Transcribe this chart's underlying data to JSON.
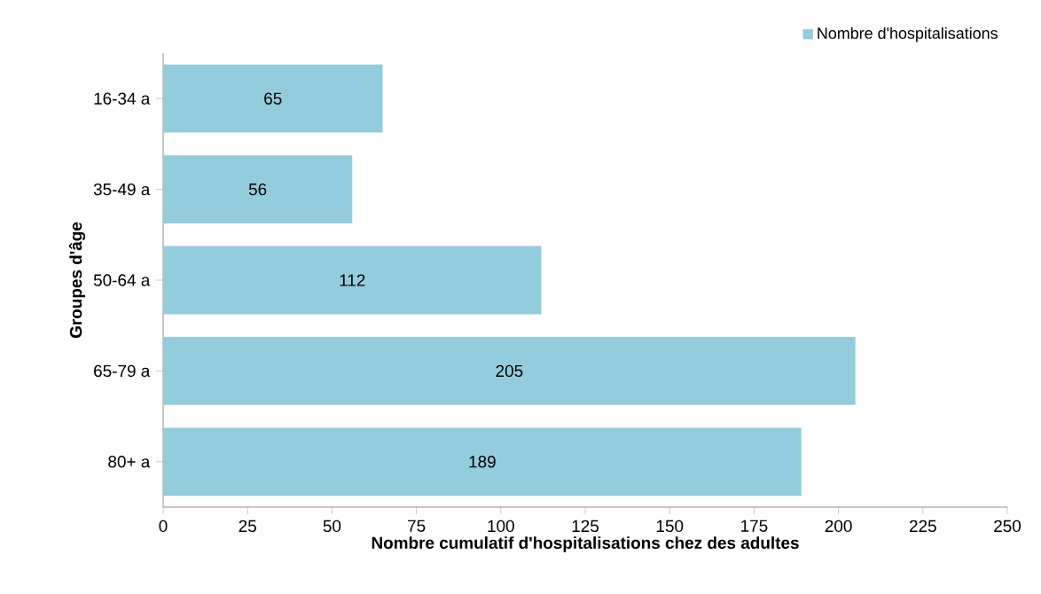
{
  "chart_data": {
    "type": "bar",
    "orientation": "horizontal",
    "xlabel": "Nombre cumulatif d'hospitalisations chez des adultes",
    "ylabel": "Groupes d'âge",
    "categories": [
      "16-34 a",
      "35-49 a",
      "50-64 a",
      "65-79 a",
      "80+ a"
    ],
    "series": [
      {
        "name": "Nombre d'hospitalisations",
        "color": "#93cddd",
        "values": [
          65,
          56,
          112,
          205,
          189
        ]
      }
    ],
    "xlim": [
      0,
      250
    ],
    "xticks": [
      0,
      25,
      50,
      75,
      100,
      125,
      150,
      175,
      200,
      225,
      250
    ],
    "data_labels": true,
    "legend": "top right",
    "grid": false
  }
}
